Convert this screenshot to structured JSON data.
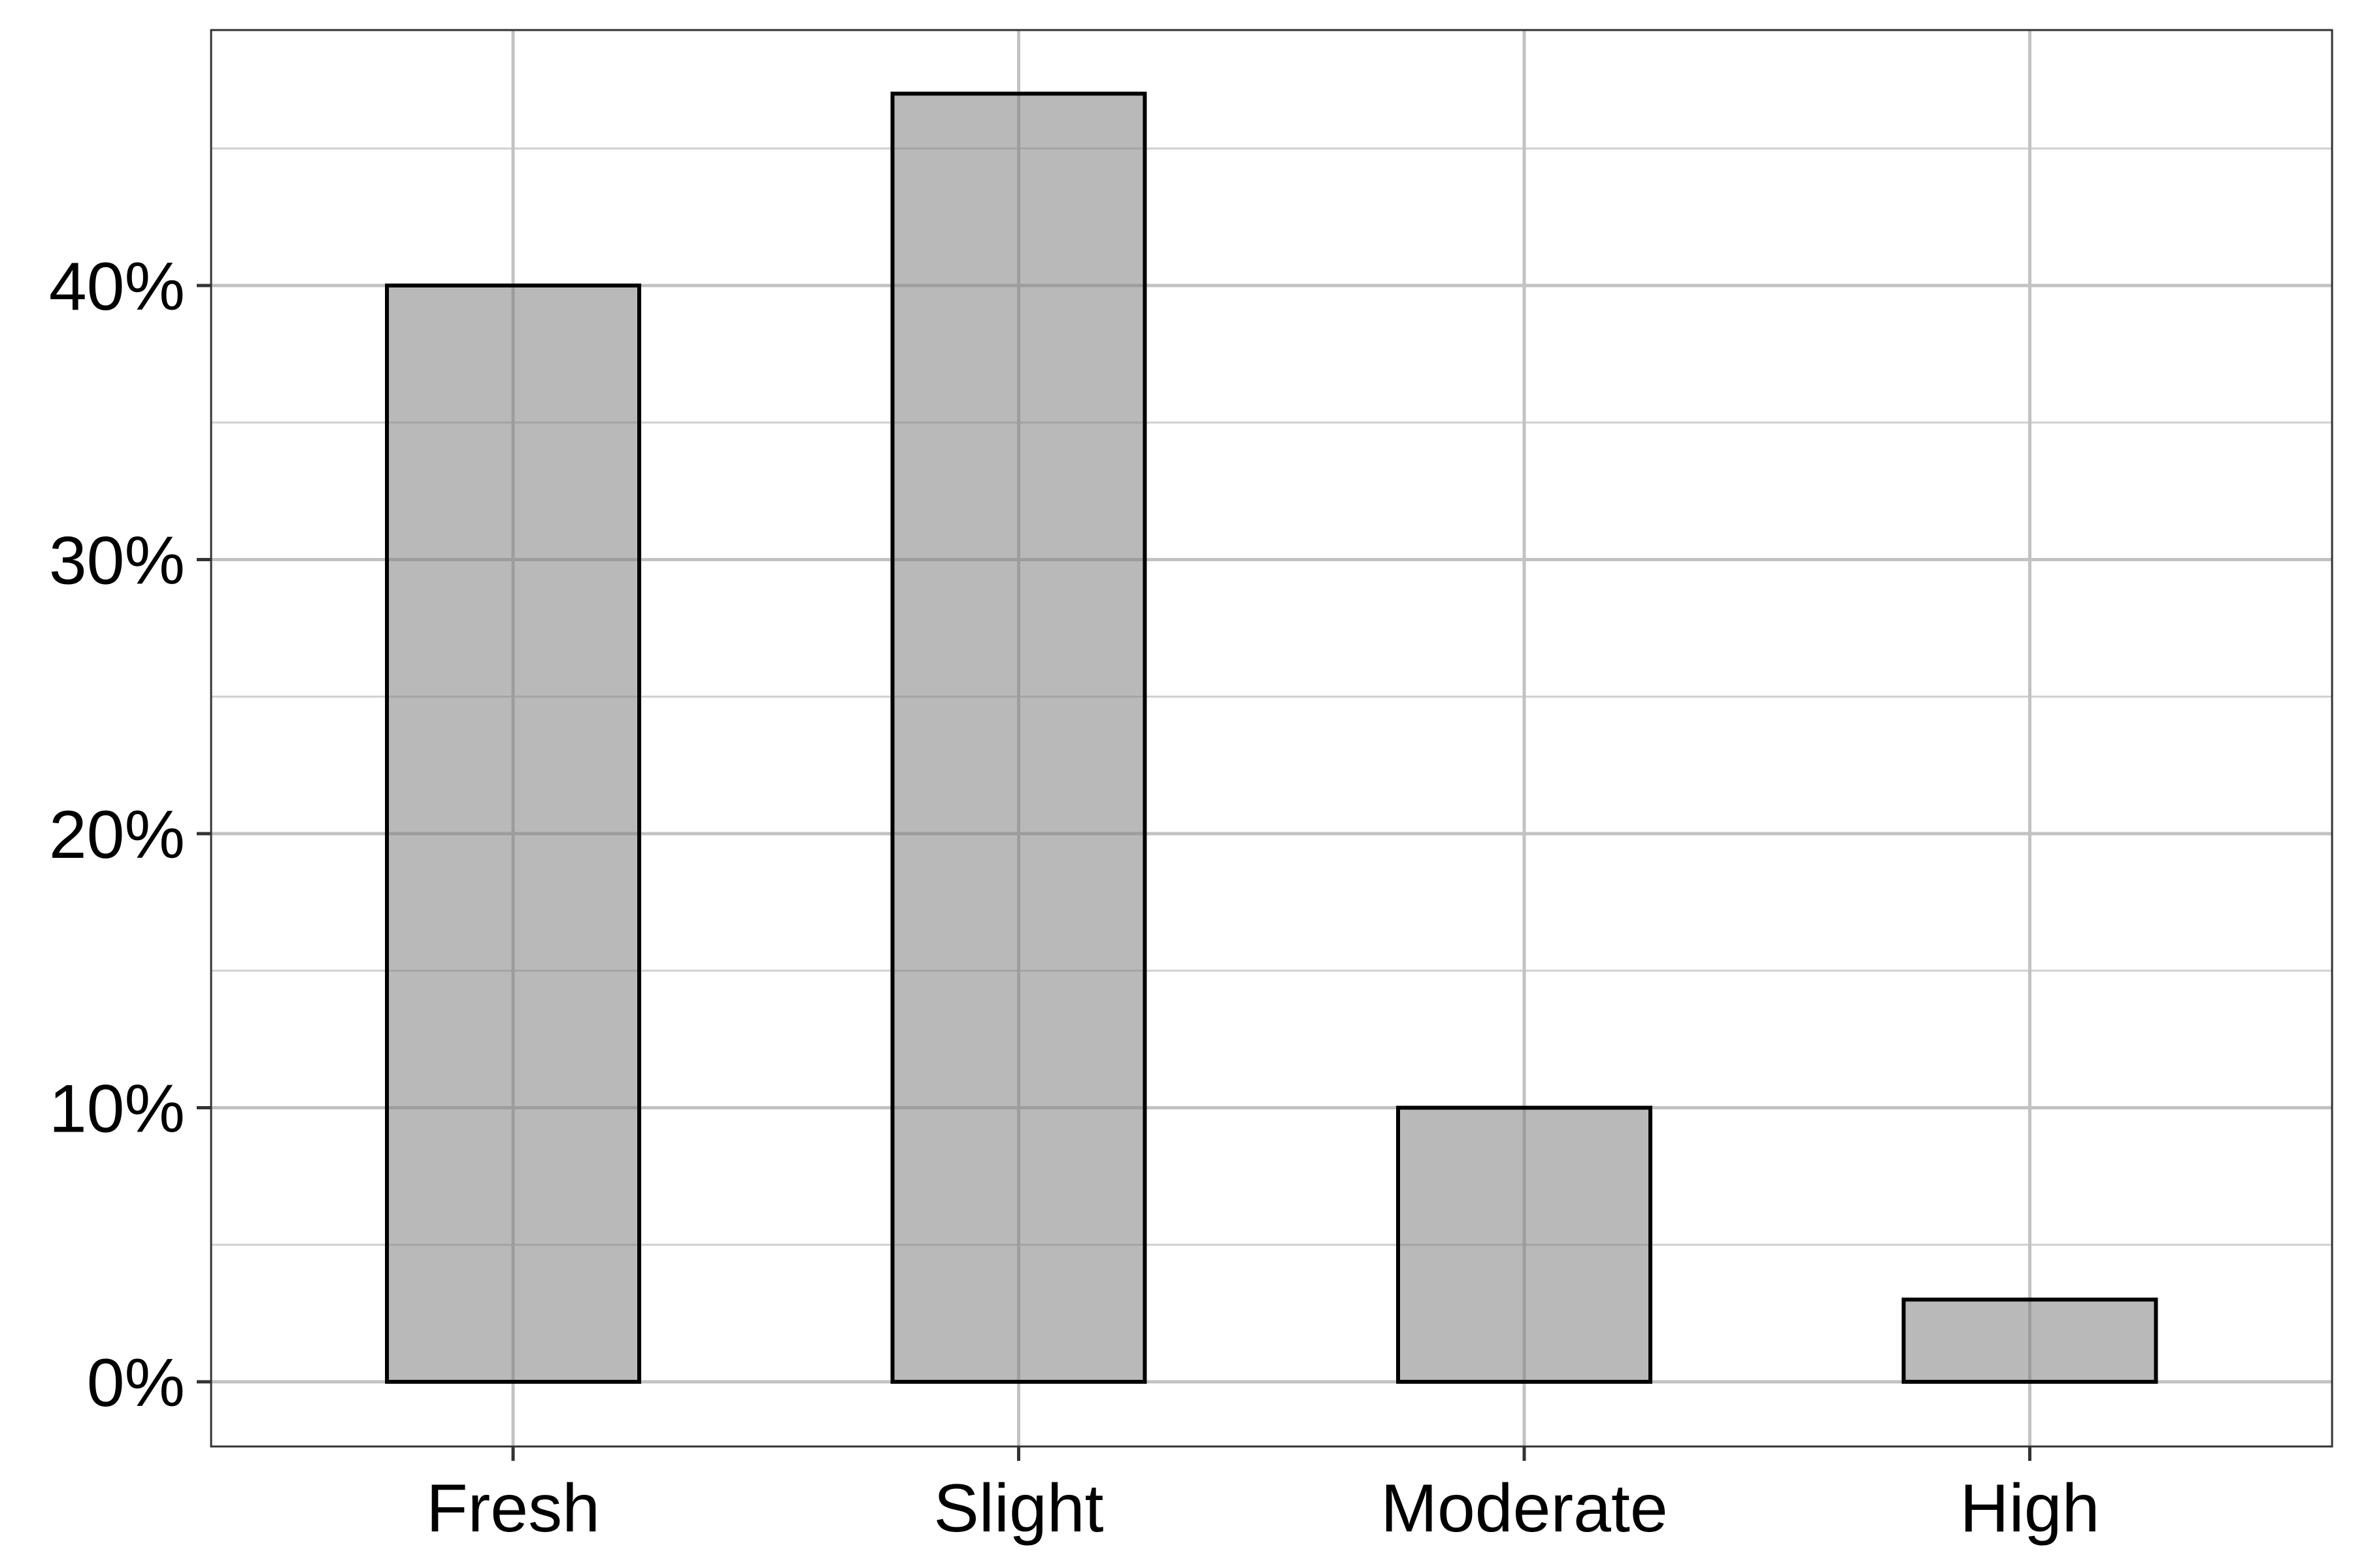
{
  "chart_data": {
    "type": "bar",
    "title": "",
    "xlabel": "",
    "ylabel": "",
    "categories": [
      "Fresh",
      "Slight",
      "Moderate",
      "High"
    ],
    "values": [
      40,
      47,
      10,
      3
    ],
    "value_unit": "%",
    "ylim": [
      0,
      50
    ],
    "y_ticks": [
      0,
      10,
      20,
      30,
      40
    ],
    "y_tick_labels": [
      "0%",
      "10%",
      "20%",
      "30%",
      "40%"
    ],
    "grid": true,
    "legend": "none",
    "colors": {
      "bar_fill": "#808080",
      "bar_outline": "#000000",
      "grid": "#c2c2c2",
      "background": "#ffffff"
    }
  }
}
